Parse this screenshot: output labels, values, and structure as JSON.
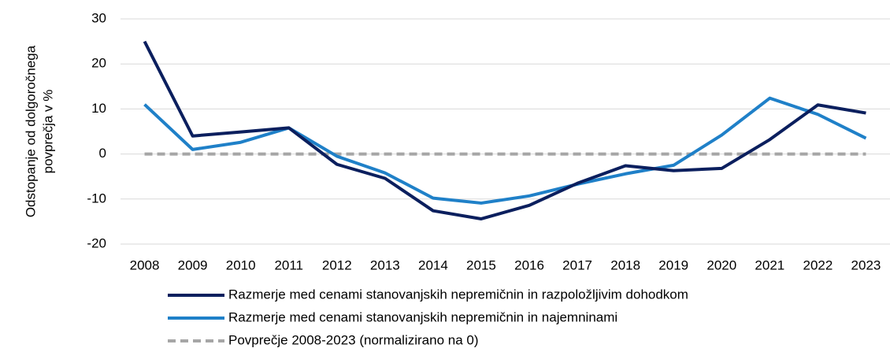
{
  "chart_data": {
    "type": "line",
    "ylabel": [
      "Odstopanje od dolgoročnega",
      "povprečja v %"
    ],
    "categories": [
      "2008",
      "2009",
      "2010",
      "2011",
      "2012",
      "2013",
      "2014",
      "2015",
      "2016",
      "2017",
      "2018",
      "2019",
      "2020",
      "2021",
      "2022",
      "2023"
    ],
    "series": [
      {
        "name": "Razmerje med cenami stanovanjskih nepremičnin in razpoložljivim dohodkom",
        "color": "#0b1f5e",
        "values": [
          25,
          4,
          4.9,
          5.8,
          -2.3,
          -5.4,
          -12.6,
          -14.4,
          -11.4,
          -6.5,
          -2.6,
          -3.7,
          -3.2,
          3.2,
          10.9,
          9.1
        ]
      },
      {
        "name": "Razmerje med cenami stanovanjskih nepremičnin in najemninami",
        "color": "#1f80c8",
        "values": [
          11,
          1,
          2.6,
          5.8,
          -0.5,
          -4.2,
          -9.8,
          -10.9,
          -9.3,
          -6.7,
          -4.4,
          -2.5,
          4.2,
          12.4,
          8.8,
          3.5
        ]
      },
      {
        "name": "Povprečje 2008-2023 (normalizirano na 0)",
        "color": "#a6a6a6",
        "dashed": true,
        "values": [
          0,
          0,
          0,
          0,
          0,
          0,
          0,
          0,
          0,
          0,
          0,
          0,
          0,
          0,
          0,
          0
        ]
      }
    ],
    "ylim": [
      -20,
      30
    ],
    "yticks": [
      -20,
      -10,
      0,
      10,
      20,
      30
    ],
    "grid": true
  }
}
